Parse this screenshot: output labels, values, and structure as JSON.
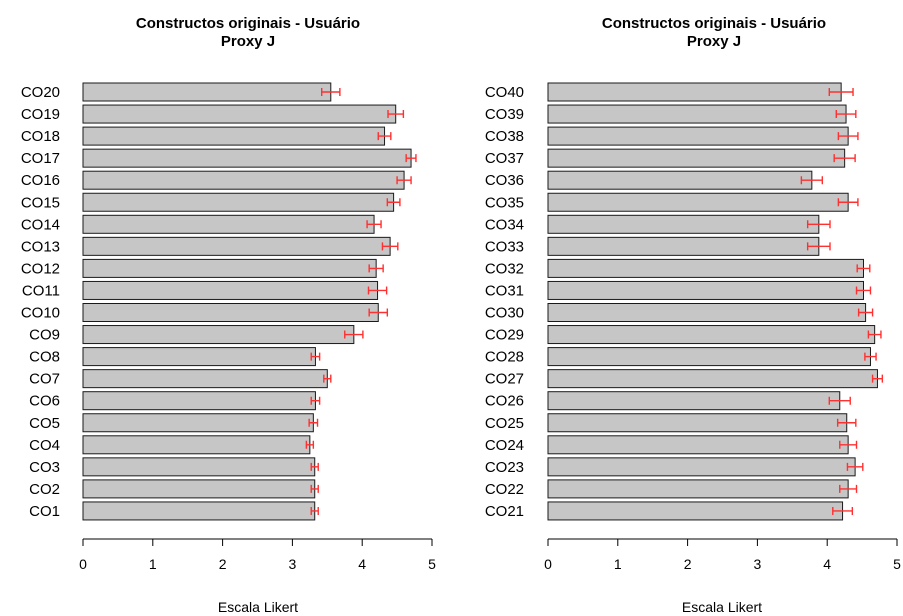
{
  "chart_data": [
    {
      "type": "bar",
      "orientation": "horizontal",
      "title_line1": "Constructos originais - Usuário",
      "title_line2": "Proxy J",
      "xlabel": "Escala Likert",
      "xlim": [
        0,
        5
      ],
      "xticks": [
        "0",
        "1",
        "2",
        "3",
        "4",
        "5"
      ],
      "grid": false,
      "error_bar_color": "#ff3030",
      "bar_color": "#c6c6c6",
      "categories": [
        "CO20",
        "CO19",
        "CO18",
        "CO17",
        "CO16",
        "CO15",
        "CO14",
        "CO13",
        "CO12",
        "CO11",
        "CO10",
        "CO9",
        "CO8",
        "CO7",
        "CO6",
        "CO5",
        "CO4",
        "CO3",
        "CO2",
        "CO1"
      ],
      "values": [
        3.55,
        4.48,
        4.32,
        4.7,
        4.6,
        4.45,
        4.17,
        4.4,
        4.2,
        4.22,
        4.23,
        3.88,
        3.33,
        3.5,
        3.33,
        3.3,
        3.25,
        3.32,
        3.32,
        3.32
      ],
      "errors": [
        0.13,
        0.11,
        0.09,
        0.07,
        0.1,
        0.09,
        0.1,
        0.11,
        0.1,
        0.13,
        0.13,
        0.13,
        0.06,
        0.05,
        0.06,
        0.06,
        0.05,
        0.05,
        0.05,
        0.05
      ]
    },
    {
      "type": "bar",
      "orientation": "horizontal",
      "title_line1": "Constructos originais - Usuário",
      "title_line2": "Proxy J",
      "xlabel": "Escala Likert",
      "xlim": [
        0,
        5
      ],
      "xticks": [
        "0",
        "1",
        "2",
        "3",
        "4",
        "5"
      ],
      "grid": false,
      "error_bar_color": "#ff3030",
      "bar_color": "#c6c6c6",
      "categories": [
        "CO40",
        "CO39",
        "CO38",
        "CO37",
        "CO36",
        "CO35",
        "CO34",
        "CO33",
        "CO32",
        "CO31",
        "CO30",
        "CO29",
        "CO28",
        "CO27",
        "CO26",
        "CO25",
        "CO24",
        "CO23",
        "CO22",
        "CO21"
      ],
      "values": [
        4.2,
        4.27,
        4.3,
        4.25,
        3.78,
        4.3,
        3.88,
        3.88,
        4.52,
        4.52,
        4.55,
        4.68,
        4.62,
        4.72,
        4.18,
        4.28,
        4.3,
        4.4,
        4.3,
        4.22
      ],
      "errors": [
        0.17,
        0.14,
        0.14,
        0.15,
        0.15,
        0.14,
        0.16,
        0.16,
        0.09,
        0.1,
        0.1,
        0.09,
        0.08,
        0.07,
        0.15,
        0.13,
        0.12,
        0.11,
        0.12,
        0.14
      ]
    }
  ]
}
